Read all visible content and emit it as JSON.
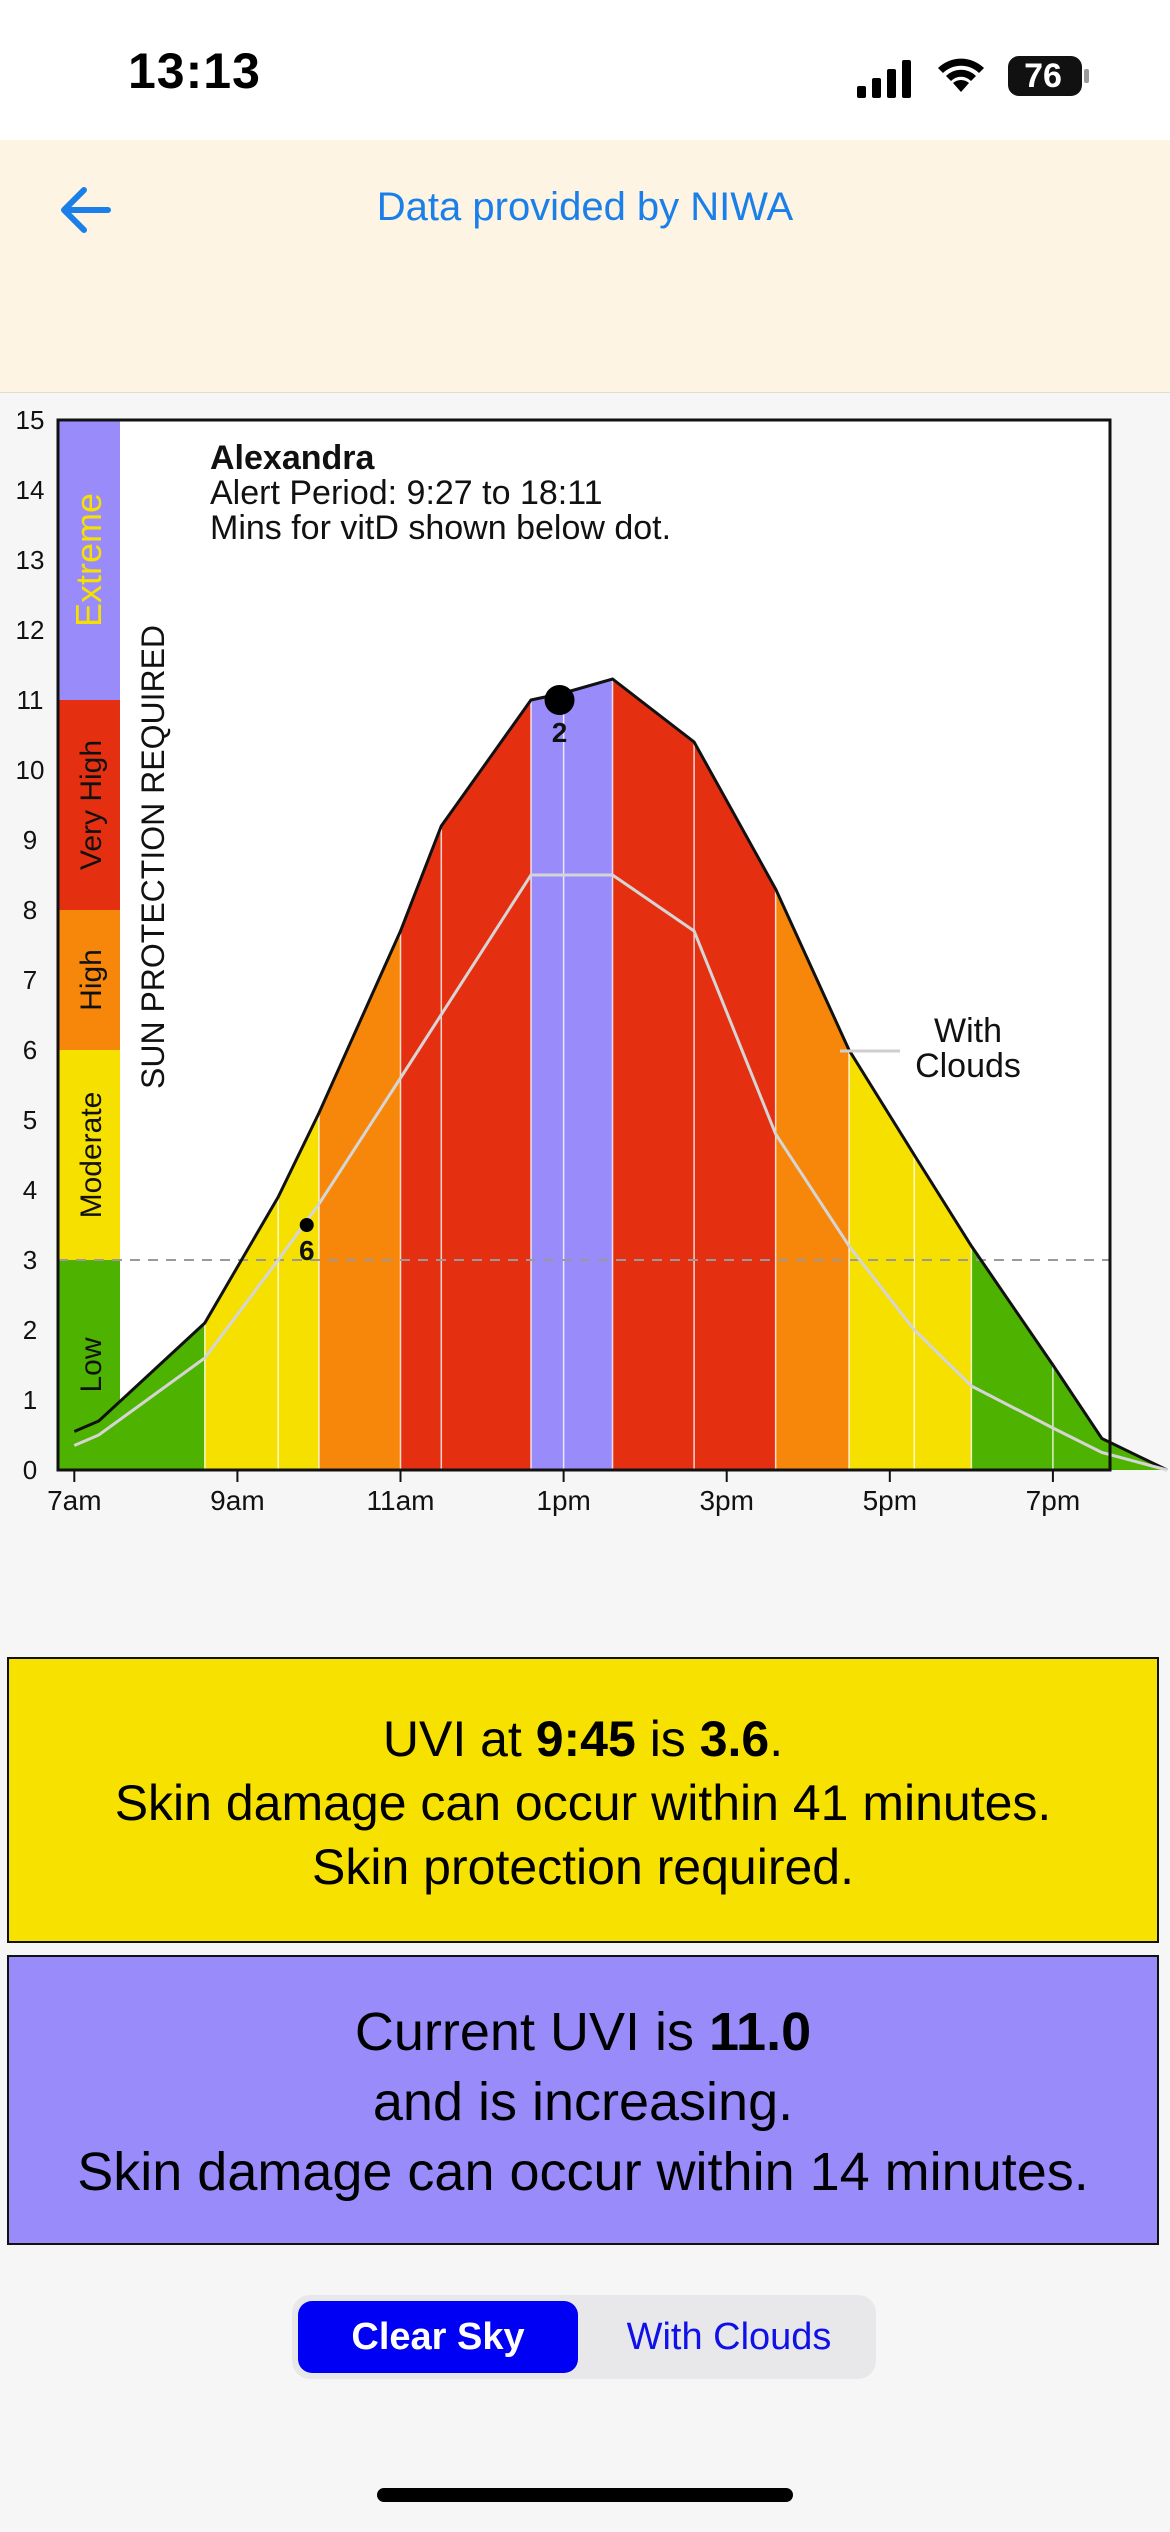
{
  "status_bar": {
    "time": "13:13",
    "battery": "76",
    "signal_icon": "cellular-signal-icon",
    "wifi_icon": "wifi-icon",
    "battery_icon": "battery-icon"
  },
  "nav": {
    "back_icon": "arrow-left-icon",
    "title": "Data provided by NIWA",
    "accent_color": "#1a7fe8",
    "background": "#fdf4e3"
  },
  "chart": {
    "location": "Alexandra",
    "alert_period": "Alert Period: 9:27 to 18:11",
    "vitd_note": "Mins for vitD shown below dot.",
    "vertical_label": "SUN PROTECTION REQUIRED",
    "with_clouds_label": [
      "With",
      "Clouds"
    ],
    "bands": [
      {
        "label": "Low",
        "from": 0,
        "to": 3,
        "color": "#4db300"
      },
      {
        "label": "Moderate",
        "from": 3,
        "to": 6,
        "color": "#f5e000"
      },
      {
        "label": "High",
        "from": 6,
        "to": 8,
        "color": "#f7870a"
      },
      {
        "label": "Very High",
        "from": 8,
        "to": 11,
        "color": "#e52f11"
      },
      {
        "label": "Extreme",
        "from": 11,
        "to": 15,
        "color": "#9a8bfb"
      }
    ],
    "extreme_label_color": "#f5e000"
  },
  "chart_data": {
    "type": "area",
    "xlabel": "",
    "ylabel": "",
    "ylim": [
      0,
      15
    ],
    "xlim": [
      6.8,
      19.7
    ],
    "yticks": [
      0,
      1,
      2,
      3,
      4,
      5,
      6,
      7,
      8,
      9,
      10,
      11,
      12,
      13,
      14,
      15
    ],
    "xticks": [
      {
        "label": "7am",
        "value": 7
      },
      {
        "label": "9am",
        "value": 9
      },
      {
        "label": "11am",
        "value": 11
      },
      {
        "label": "1pm",
        "value": 13
      },
      {
        "label": "3pm",
        "value": 15
      },
      {
        "label": "5pm",
        "value": 17
      },
      {
        "label": "7pm",
        "value": 19
      }
    ],
    "threshold": 3,
    "grid": false,
    "series": [
      {
        "name": "",
        "x": [
          7.0,
          7.3,
          8.6,
          9.5,
          10.0,
          11.0,
          11.5,
          12.6,
          13.0,
          13.6,
          14.6,
          15.6,
          16.5,
          17.3,
          18.0,
          19.0,
          19.6,
          20.4
        ],
        "y": [
          0.55,
          0.7,
          2.1,
          3.9,
          5.1,
          7.7,
          9.2,
          11.0,
          11.1,
          11.3,
          10.4,
          8.3,
          6.0,
          4.5,
          3.2,
          1.5,
          0.45,
          0.0
        ]
      },
      {
        "name": "With Clouds",
        "x": [
          7.0,
          7.3,
          8.6,
          9.5,
          10.0,
          11.0,
          12.6,
          13.6,
          14.6,
          15.6,
          16.5,
          17.3,
          18.0,
          19.0,
          19.6,
          20.4
        ],
        "y": [
          0.35,
          0.5,
          1.6,
          3.0,
          3.8,
          5.6,
          8.5,
          8.5,
          7.7,
          4.8,
          3.2,
          2.0,
          1.2,
          0.6,
          0.25,
          0.0
        ]
      }
    ],
    "markers": [
      {
        "x": 9.85,
        "y": 3.5,
        "label": "6"
      },
      {
        "x": 12.95,
        "y": 11.0,
        "label": "2"
      }
    ]
  },
  "exposure_panel": {
    "prefix": "UVI at ",
    "time": "9:45",
    "mid": " is ",
    "uvi": "3.6",
    "suffix": ".",
    "line2": "Skin damage can occur within 41 minutes.",
    "line3": "Skin protection required.",
    "background": "#f6e100"
  },
  "current_panel": {
    "prefix": "Current UVI is ",
    "uvi": "11.0",
    "line2": "and is increasing.",
    "line3": "Skin damage can occur within 14 minutes.",
    "background": "#9a8bfb"
  },
  "segment_control": {
    "options": [
      "Clear Sky",
      "With Clouds"
    ],
    "selected": "Clear Sky",
    "selected_color": "#0000f5"
  }
}
